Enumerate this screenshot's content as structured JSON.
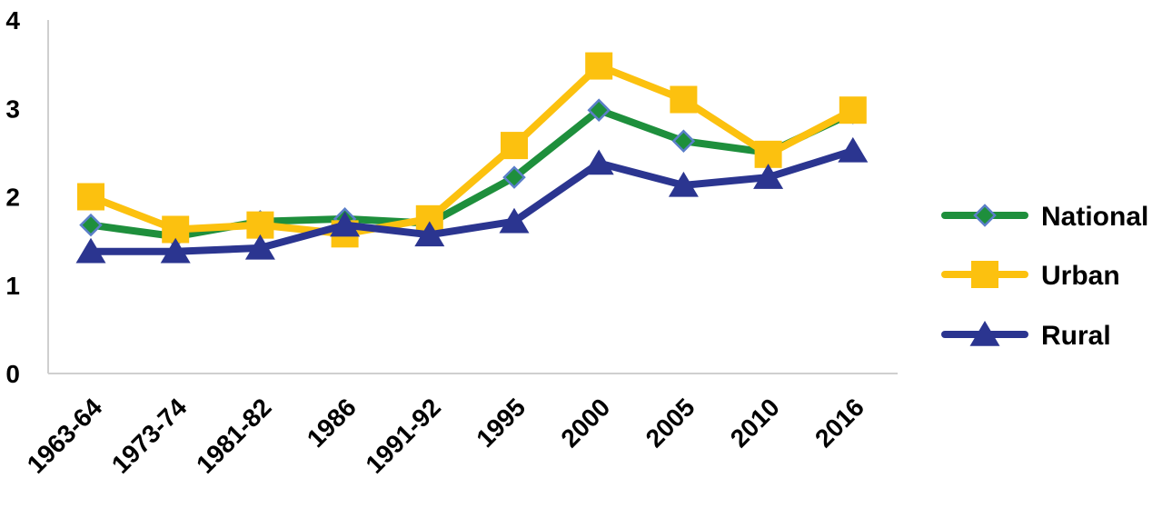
{
  "chart_data": {
    "type": "line",
    "title": "",
    "xlabel": "",
    "ylabel": "",
    "ylim": [
      0,
      4
    ],
    "yticks": [
      "0",
      "1",
      "2",
      "3",
      "4"
    ],
    "grid": false,
    "legend_position": "right",
    "categories": [
      "1963-64",
      "1973-74",
      "1981-82",
      "1986",
      "1991-92",
      "1995",
      "2000",
      "2005",
      "2010",
      "2016"
    ],
    "series": [
      {
        "name": "National",
        "color": "#1e8f3c",
        "marker": "diamond",
        "marker_color": "#1e8f3c",
        "marker_edge": "#5b7fc9",
        "values": [
          1.68,
          1.55,
          1.72,
          1.75,
          1.7,
          2.22,
          2.98,
          2.63,
          2.5,
          2.95
        ]
      },
      {
        "name": "Urban",
        "color": "#fcc10f",
        "marker": "square",
        "marker_color": "#fcc10f",
        "values": [
          2.0,
          1.63,
          1.68,
          1.58,
          1.75,
          2.58,
          3.48,
          3.1,
          2.48,
          2.98
        ]
      },
      {
        "name": "Rural",
        "color": "#2b3590",
        "marker": "triangle",
        "marker_color": "#2b3590",
        "values": [
          1.38,
          1.38,
          1.42,
          1.68,
          1.57,
          1.72,
          2.38,
          2.13,
          2.22,
          2.52
        ]
      }
    ]
  }
}
